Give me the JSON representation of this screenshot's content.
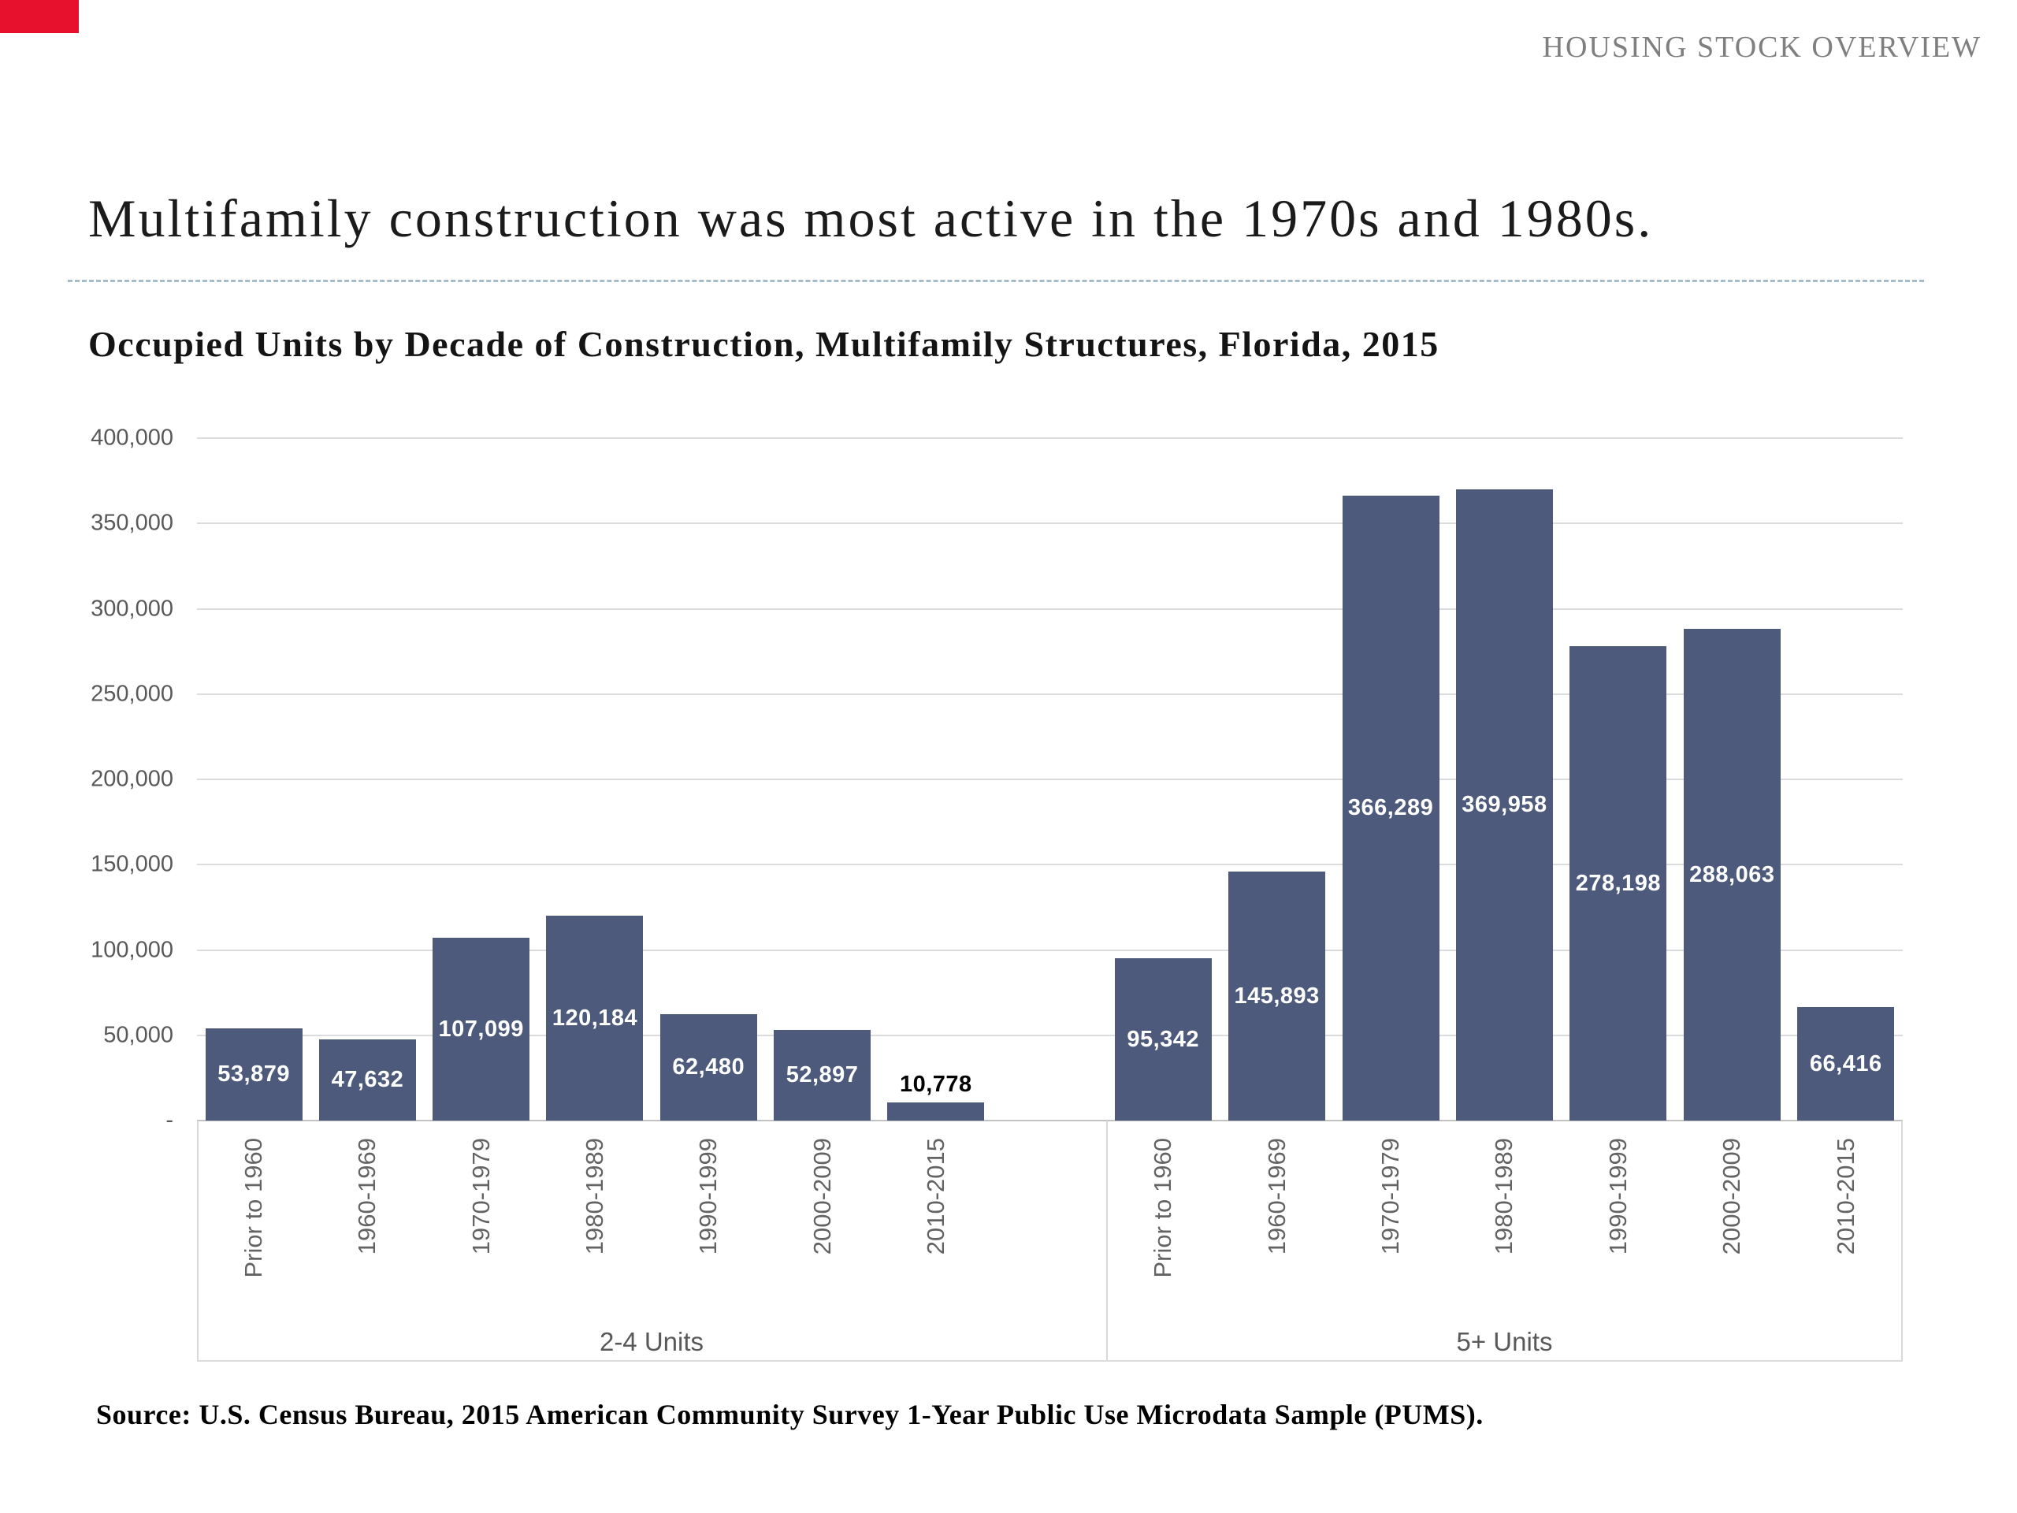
{
  "page": {
    "header_label": "HOUSING STOCK OVERVIEW",
    "title": "Multifamily construction was most active in the 1970s and 1980s.",
    "source": "Source: U.S. Census Bureau, 2015 American Community Survey 1-Year Public Use Microdata Sample (PUMS)."
  },
  "chart_data": {
    "type": "bar",
    "title": "Occupied Units by Decade of Construction, Multifamily Structures, Florida, 2015",
    "xlabel": "",
    "ylabel": "",
    "ylim": [
      0,
      400000
    ],
    "ytick_interval": 50000,
    "ytick_labels": [
      "400,000",
      "350,000",
      "300,000",
      "250,000",
      "200,000",
      "150,000",
      "100,000",
      "50,000",
      "-"
    ],
    "grid": true,
    "legend": false,
    "categories": [
      "Prior to 1960",
      "1960-1969",
      "1970-1979",
      "1980-1989",
      "1990-1999",
      "2000-2009",
      "2010-2015"
    ],
    "groups": [
      {
        "label": "2-4 Units",
        "values": [
          53879,
          47632,
          107099,
          120184,
          62480,
          52897,
          10778
        ],
        "value_labels": [
          "53,879",
          "47,632",
          "107,099",
          "120,184",
          "62,480",
          "52,897",
          "10,778"
        ]
      },
      {
        "label": "5+ Units",
        "values": [
          95342,
          145893,
          366289,
          369958,
          278198,
          288063,
          66416
        ],
        "value_labels": [
          "95,342",
          "145,893",
          "366,289",
          "369,958",
          "278,198",
          "288,063",
          "66,416"
        ]
      }
    ]
  },
  "colors": {
    "bar": "#4e5a7c",
    "gridline": "#dcdcdc",
    "axis_baseline": "#c2c2c2",
    "axis_text": "#595959",
    "category_text": "#636363",
    "header_text": "#7f7f7f",
    "title_text": "#1b1b1b",
    "dashed_rule": "#a6bcca",
    "value_label_inside": "#ffffff",
    "value_label_outside": "#000000",
    "corner_marker": "#e8112d",
    "background": "#ffffff"
  }
}
